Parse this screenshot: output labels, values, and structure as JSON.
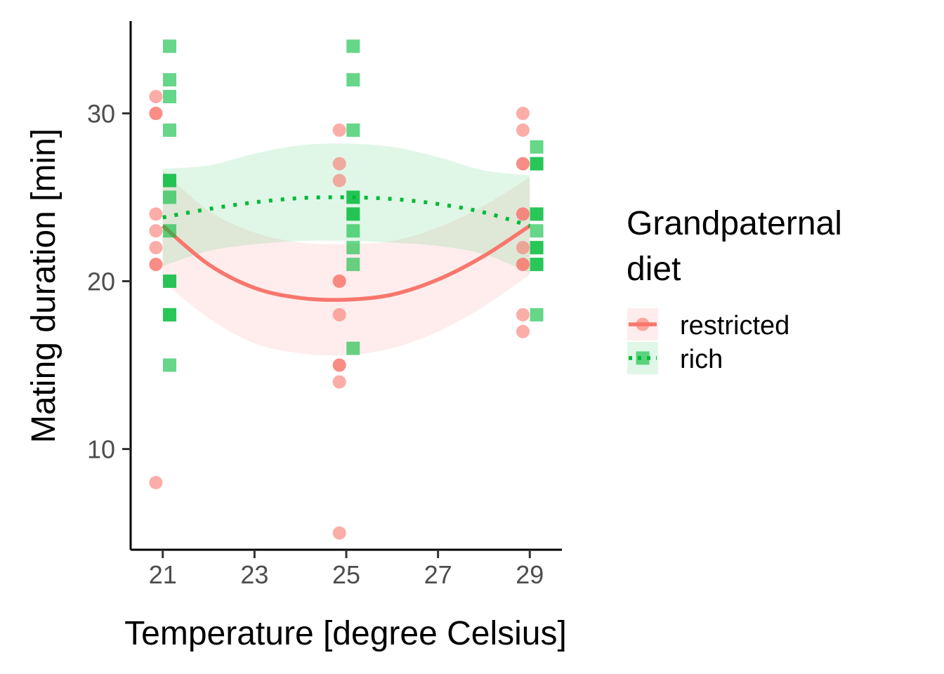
{
  "chart_data": {
    "type": "scatter",
    "xlabel": "Temperature [degree Celsius]",
    "ylabel": "Mating duration [min]",
    "xlim": [
      20.3,
      29.7
    ],
    "ylim": [
      4.0,
      35.5
    ],
    "x_ticks": [
      21,
      23,
      25,
      27,
      29
    ],
    "x_tick_labels": [
      "21",
      "23",
      "25",
      "27",
      "29"
    ],
    "y_ticks": [
      10,
      20,
      30
    ],
    "y_tick_labels": [
      "10",
      "20",
      "30"
    ],
    "grid": false,
    "legend": {
      "title_lines": [
        "Grandpaternal",
        "diet"
      ],
      "placement": "right"
    },
    "series": [
      {
        "name": "restricted",
        "color": "#F8766D",
        "marker": "circle",
        "line_style": "solid",
        "points": [
          [
            20.85,
            31
          ],
          [
            20.85,
            30
          ],
          [
            20.85,
            30
          ],
          [
            20.85,
            24
          ],
          [
            20.85,
            23
          ],
          [
            20.85,
            22
          ],
          [
            20.85,
            21
          ],
          [
            20.85,
            21
          ],
          [
            20.85,
            8
          ],
          [
            24.85,
            29
          ],
          [
            24.85,
            27
          ],
          [
            24.85,
            26
          ],
          [
            24.85,
            20
          ],
          [
            24.85,
            20
          ],
          [
            24.85,
            18
          ],
          [
            24.85,
            15
          ],
          [
            24.85,
            15
          ],
          [
            24.85,
            14
          ],
          [
            24.85,
            5
          ],
          [
            28.85,
            30
          ],
          [
            28.85,
            29
          ],
          [
            28.85,
            27
          ],
          [
            28.85,
            27
          ],
          [
            28.85,
            24
          ],
          [
            28.85,
            24
          ],
          [
            28.85,
            22
          ],
          [
            28.85,
            21
          ],
          [
            28.85,
            21
          ],
          [
            28.85,
            18
          ],
          [
            28.85,
            17
          ]
        ],
        "fit": {
          "x": [
            21,
            22,
            23,
            24,
            25,
            26,
            27,
            28,
            29
          ],
          "y": [
            23.3,
            21.0,
            19.6,
            19.0,
            18.9,
            19.2,
            20.1,
            21.5,
            23.3
          ]
        },
        "band_low": [
          20.0,
          17.8,
          16.3,
          15.7,
          15.6,
          16.0,
          17.0,
          18.5,
          20.4
        ],
        "band_high": [
          26.6,
          24.2,
          22.9,
          22.3,
          22.2,
          22.4,
          23.2,
          24.5,
          26.2
        ]
      },
      {
        "name": "rich",
        "color": "#00BA38",
        "marker": "square",
        "line_style": "dotted",
        "points": [
          [
            21.15,
            34
          ],
          [
            21.15,
            32
          ],
          [
            21.15,
            31
          ],
          [
            21.15,
            29
          ],
          [
            21.15,
            26
          ],
          [
            21.15,
            26
          ],
          [
            21.15,
            25
          ],
          [
            21.15,
            23
          ],
          [
            21.15,
            20
          ],
          [
            21.15,
            20
          ],
          [
            21.15,
            18
          ],
          [
            21.15,
            18
          ],
          [
            21.15,
            15
          ],
          [
            25.15,
            34
          ],
          [
            25.15,
            32
          ],
          [
            25.15,
            29
          ],
          [
            25.15,
            25
          ],
          [
            25.15,
            25
          ],
          [
            25.15,
            24
          ],
          [
            25.15,
            24
          ],
          [
            25.15,
            23
          ],
          [
            25.15,
            22
          ],
          [
            25.15,
            21
          ],
          [
            25.15,
            16
          ],
          [
            29.15,
            28
          ],
          [
            29.15,
            27
          ],
          [
            29.15,
            27
          ],
          [
            29.15,
            24
          ],
          [
            29.15,
            24
          ],
          [
            29.15,
            23
          ],
          [
            29.15,
            22
          ],
          [
            29.15,
            22
          ],
          [
            29.15,
            21
          ],
          [
            29.15,
            21
          ],
          [
            29.15,
            18
          ]
        ],
        "fit": {
          "x": [
            21,
            22,
            23,
            24,
            25,
            26,
            27,
            28,
            29
          ],
          "y": [
            23.8,
            24.3,
            24.7,
            24.95,
            25.0,
            24.9,
            24.6,
            24.1,
            23.3
          ]
        },
        "band_low": [
          20.9,
          21.8,
          22.2,
          22.4,
          22.4,
          22.3,
          22.1,
          21.6,
          20.5
        ],
        "band_high": [
          26.7,
          26.9,
          27.6,
          28.1,
          28.2,
          28.0,
          27.4,
          26.6,
          26.3
        ]
      }
    ]
  }
}
